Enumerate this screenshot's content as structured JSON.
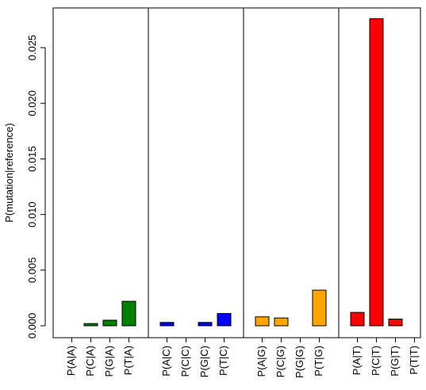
{
  "chart_data": {
    "type": "bar",
    "title": "",
    "xlabel": "",
    "ylabel": "P(mutation|reference)",
    "ylim": [
      -0.001,
      0.0285
    ],
    "yticks": [
      0.0,
      0.005,
      0.01,
      0.015,
      0.02,
      0.025
    ],
    "ytick_labels": [
      "0.000",
      "0.005",
      "0.010",
      "0.015",
      "0.020",
      "0.025"
    ],
    "grid": false,
    "legend": "none",
    "groups": [
      {
        "color": "#008000",
        "categories": [
          "P(A|A)",
          "P(C|A)",
          "P(G|A)",
          "P(T|A)"
        ],
        "values": [
          0.0,
          0.0002,
          0.0005,
          0.0022
        ]
      },
      {
        "color": "#0000ff",
        "categories": [
          "P(A|C)",
          "P(C|C)",
          "P(G|C)",
          "P(T|C)"
        ],
        "values": [
          0.0003,
          0.0,
          0.0003,
          0.0011
        ]
      },
      {
        "color": "#ffa500",
        "categories": [
          "P(A|G)",
          "P(C|G)",
          "P(G|G)",
          "P(T|G)"
        ],
        "values": [
          0.0008,
          0.0007,
          0.0,
          0.0032
        ]
      },
      {
        "color": "#ff0000",
        "categories": [
          "P(A|T)",
          "P(C|T)",
          "P(G|T)",
          "P(T|T)"
        ],
        "values": [
          0.0012,
          0.0276,
          0.0006,
          0.0
        ]
      }
    ]
  }
}
